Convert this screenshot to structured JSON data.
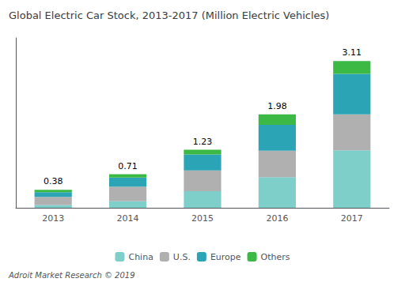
{
  "chart_data": {
    "type": "bar",
    "title": "Global Electric Car Stock, 2013-2017 (Million Electric Vehicles)",
    "categories": [
      "2013",
      "2014",
      "2015",
      "2016",
      "2017"
    ],
    "series": [
      {
        "name": "China",
        "color": "#7ECECA",
        "values": [
          0.06,
          0.14,
          0.35,
          0.65,
          1.22
        ]
      },
      {
        "name": "U.S.",
        "color": "#B0B0B0",
        "values": [
          0.17,
          0.31,
          0.44,
          0.56,
          0.76
        ]
      },
      {
        "name": "Europe",
        "color": "#2BA5B5",
        "values": [
          0.1,
          0.19,
          0.34,
          0.55,
          0.86
        ]
      },
      {
        "name": "Others",
        "color": "#3CB844",
        "values": [
          0.05,
          0.07,
          0.1,
          0.22,
          0.27
        ]
      }
    ],
    "totals": [
      0.38,
      0.71,
      1.23,
      1.98,
      3.11
    ],
    "footnote": "Adroit Market Research © 2019",
    "stacked": true,
    "ylim": [
      0,
      3.6
    ],
    "yticks": [],
    "tick_labels": "x",
    "grid": false,
    "legend": "bottom",
    "data_labels": false
  }
}
